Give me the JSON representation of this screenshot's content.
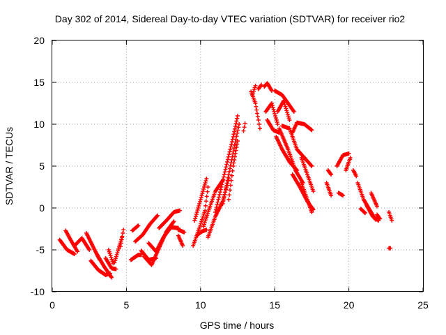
{
  "chart_data": {
    "type": "scatter",
    "title": "Day 302 of 2014, Sidereal Day-to-day VTEC variation (SDTVAR) for receiver rio2",
    "xlabel": "GPS time / hours",
    "ylabel": "SDTVAR / TECUs",
    "xlim": [
      0,
      25
    ],
    "ylim": [
      -10,
      20
    ],
    "xticks": [
      "0",
      "5",
      "10",
      "15",
      "20",
      "25"
    ],
    "yticks": [
      "-10",
      "-5",
      "0",
      "5",
      "10",
      "15",
      "20"
    ],
    "grid": true,
    "marker": "+",
    "series": [
      {
        "name": "SDTVAR",
        "color": "#ff0000",
        "tracks": [
          {
            "x": [
              0.5,
              1.0,
              1.5
            ],
            "y": [
              -3.8,
              -5.0,
              -5.5
            ]
          },
          {
            "x": [
              0.9,
              1.3,
              1.7
            ],
            "y": [
              -2.7,
              -4.0,
              -5.2
            ]
          },
          {
            "x": [
              1.5,
              2.0,
              2.5
            ],
            "y": [
              -4.5,
              -3.6,
              -5.0
            ]
          },
          {
            "x": [
              2.3,
              2.8,
              3.2
            ],
            "y": [
              -3.0,
              -4.8,
              -6.2
            ]
          },
          {
            "x": [
              2.6,
              3.1,
              3.6,
              3.9
            ],
            "y": [
              -6.3,
              -7.4,
              -8.0,
              -7.8
            ]
          },
          {
            "x": [
              3.0,
              3.5,
              4.0
            ],
            "y": [
              -5.5,
              -7.0,
              -8.3
            ]
          },
          {
            "x": [
              4.2,
              4.7
            ],
            "y": [
              -6.5,
              -3.5
            ]
          },
          {
            "x": [
              3.6,
              4.0,
              4.3
            ],
            "y": [
              -6.0,
              -7.2,
              -7.3
            ]
          },
          {
            "x": [
              3.8,
              4.1
            ],
            "y": [
              -5.0,
              -6.6
            ]
          },
          {
            "x": [
              4.6,
              4.8
            ],
            "y": [
              -4.6,
              -2.6
            ]
          },
          {
            "x": [
              5.3,
              5.8,
              6.0
            ],
            "y": [
              -6.2,
              -5.6,
              -5.6
            ]
          },
          {
            "x": [
              5.4,
              5.8
            ],
            "y": [
              -2.7,
              -2.1
            ]
          },
          {
            "x": [
              5.6,
              6.1,
              6.6,
              7.1
            ],
            "y": [
              -4.0,
              -3.2,
              -1.9,
              -0.9
            ]
          },
          {
            "x": [
              6.0,
              6.5,
              7.0
            ],
            "y": [
              -5.1,
              -6.2,
              -6.0
            ]
          },
          {
            "x": [
              6.2,
              6.7,
              7.2,
              7.7,
              8.2
            ],
            "y": [
              -5.8,
              -6.8,
              -4.8,
              -2.8,
              -1.6
            ]
          },
          {
            "x": [
              6.5,
              7.0,
              7.5,
              8.0,
              8.5
            ],
            "y": [
              -4.2,
              -5.2,
              -3.5,
              -2.3,
              -2.4
            ]
          },
          {
            "x": [
              7.2,
              7.7,
              8.2,
              8.6
            ],
            "y": [
              -2.4,
              -1.5,
              -0.5,
              -0.3
            ]
          },
          {
            "x": [
              8.5,
              8.8
            ],
            "y": [
              -3.3,
              -4.5
            ]
          },
          {
            "x": [
              8.5,
              8.9
            ],
            "y": [
              -2.6,
              -2.9
            ]
          },
          {
            "x": [
              9.5,
              9.9,
              10.3,
              10.5
            ],
            "y": [
              -4.5,
              -2.5,
              -0.3,
              2.5
            ]
          },
          {
            "x": [
              9.6,
              10.0,
              10.4
            ],
            "y": [
              -1.5,
              1.0,
              3.5
            ]
          },
          {
            "x": [
              9.8,
              10.1,
              10.4
            ],
            "y": [
              -3.2,
              -2.8,
              -2.6
            ]
          },
          {
            "x": [
              10.2,
              10.6,
              11.0,
              11.5
            ],
            "y": [
              -2.2,
              0.0,
              2.0,
              3.3
            ]
          },
          {
            "x": [
              10.5,
              11.0,
              11.5,
              11.9
            ],
            "y": [
              -3.5,
              -1.0,
              0.8,
              3.5
            ]
          },
          {
            "x": [
              11.0,
              11.4,
              11.8,
              12.2,
              12.5
            ],
            "y": [
              -0.5,
              2.5,
              5.5,
              8.5,
              11.0
            ]
          },
          {
            "x": [
              11.5,
              11.9,
              12.3,
              12.6
            ],
            "y": [
              0.5,
              4.0,
              7.5,
              10.0
            ]
          },
          {
            "x": [
              11.9,
              12.2,
              12.5
            ],
            "y": [
              1.0,
              5.0,
              8.0
            ]
          },
          {
            "x": [
              12.9,
              13.0
            ],
            "y": [
              9.2,
              10.1
            ]
          },
          {
            "x": [
              13.4,
              13.7,
              13.9,
              14.0
            ],
            "y": [
              13.9,
              12.5,
              10.5,
              9.5
            ]
          },
          {
            "x": [
              13.5,
              13.7
            ],
            "y": [
              13.5,
              14.6
            ]
          },
          {
            "x": [
              13.9,
              14.1
            ],
            "y": [
              14.2,
              14.7
            ]
          },
          {
            "x": [
              14.3,
              14.5,
              14.8
            ],
            "y": [
              14.5,
              14.9,
              14.0
            ]
          },
          {
            "x": [
              14.4,
              14.8,
              15.2
            ],
            "y": [
              11.5,
              12.5,
              10.0
            ]
          },
          {
            "x": [
              14.5,
              14.9,
              15.3
            ],
            "y": [
              10.5,
              9.3,
              9.0
            ]
          },
          {
            "x": [
              15.0,
              15.5,
              15.9,
              16.3
            ],
            "y": [
              14.0,
              13.5,
              12.5,
              11.5
            ]
          },
          {
            "x": [
              15.2,
              15.6,
              16.0
            ],
            "y": [
              11.5,
              12.8,
              10.5
            ]
          },
          {
            "x": [
              15.1,
              15.5,
              16.0,
              16.5
            ],
            "y": [
              8.5,
              7.0,
              5.5,
              4.5
            ]
          },
          {
            "x": [
              15.3,
              15.9,
              16.4,
              16.9
            ],
            "y": [
              9.5,
              7.0,
              4.5,
              3.0
            ]
          },
          {
            "x": [
              15.5,
              16.0,
              16.5,
              17.0,
              17.5
            ],
            "y": [
              9.8,
              9.5,
              7.0,
              6.0,
              5.0
            ]
          },
          {
            "x": [
              16.2,
              16.5,
              17.0,
              17.5
            ],
            "y": [
              9.0,
              10.2,
              10.0,
              9.3
            ]
          },
          {
            "x": [
              16.2,
              16.7,
              17.2,
              17.6
            ],
            "y": [
              4.0,
              2.5,
              0.8,
              -0.2
            ]
          },
          {
            "x": [
              16.8,
              17.2,
              17.6
            ],
            "y": [
              6.0,
              4.0,
              2.0
            ]
          },
          {
            "x": [
              16.8,
              17.2,
              17.5
            ],
            "y": [
              3.0,
              1.0,
              -0.5
            ]
          },
          {
            "x": [
              18.6,
              18.8
            ],
            "y": [
              4.5,
              4.0
            ]
          },
          {
            "x": [
              18.5,
              18.8
            ],
            "y": [
              3.0,
              1.5
            ]
          },
          {
            "x": [
              19.2,
              19.6,
              20.0
            ],
            "y": [
              5.0,
              6.3,
              6.5
            ]
          },
          {
            "x": [
              19.3,
              19.6
            ],
            "y": [
              1.8,
              1.5
            ]
          },
          {
            "x": [
              19.8,
              20.1
            ],
            "y": [
              4.5,
              6.0
            ]
          },
          {
            "x": [
              20.3,
              20.5
            ],
            "y": [
              4.5,
              3.8
            ]
          },
          {
            "x": [
              20.6,
              21.0,
              21.4,
              21.8
            ],
            "y": [
              3.0,
              1.0,
              -0.2,
              -1.4
            ]
          },
          {
            "x": [
              20.8,
              21.1
            ],
            "y": [
              -0.1,
              -0.6
            ]
          },
          {
            "x": [
              21.2,
              21.6,
              22.0
            ],
            "y": [
              0.3,
              -1.0,
              -1.5
            ]
          },
          {
            "x": [
              21.5,
              21.9
            ],
            "y": [
              1.8,
              0.2
            ]
          },
          {
            "x": [
              21.9,
              22.1
            ],
            "y": [
              -0.8,
              -1.3
            ]
          },
          {
            "x": [
              22.7,
              22.9
            ],
            "y": [
              -0.5,
              -1.5
            ]
          },
          {
            "x": [
              22.7,
              22.8
            ],
            "y": [
              -4.8,
              -4.8
            ]
          }
        ]
      }
    ]
  }
}
